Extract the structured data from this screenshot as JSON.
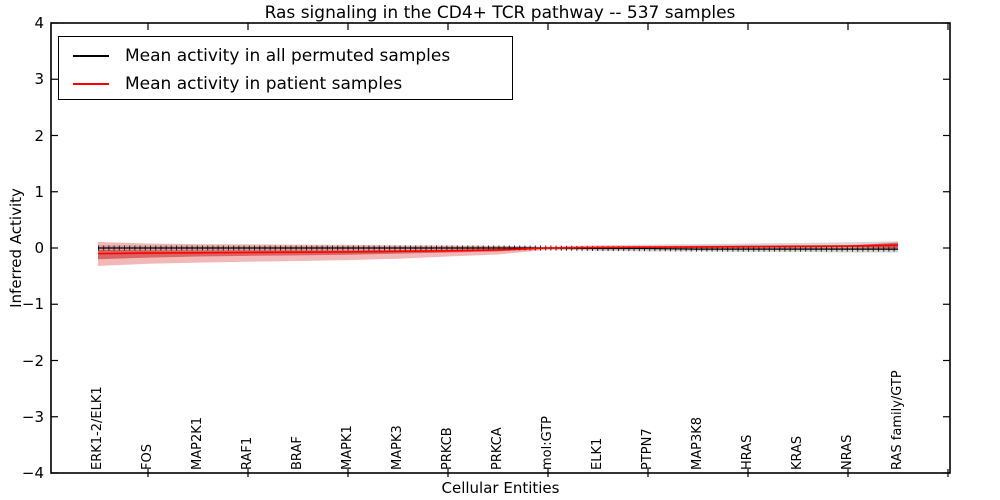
{
  "title": "Ras signaling in the CD4+ TCR pathway -- 537 samples",
  "legend": {
    "items": [
      {
        "label": "Mean activity in all permuted samples",
        "color": "#000000"
      },
      {
        "label": "Mean activity in patient samples",
        "color": "#ff0000"
      }
    ]
  },
  "axes": {
    "xlabel": "Cellular Entities",
    "ylabel": "Inferred Activity",
    "ylim": [
      -4,
      4
    ],
    "ytick_labels": [
      "4",
      "3",
      "2",
      "1",
      "0",
      "−1",
      "−2",
      "−3",
      "−4"
    ],
    "ytick_values": [
      4,
      3,
      2,
      1,
      0,
      -1,
      -2,
      -3,
      -4
    ]
  },
  "chart_data": {
    "type": "line",
    "title": "Ras signaling in the CD4+ TCR pathway -- 537 samples",
    "xlabel": "Cellular Entities",
    "ylabel": "Inferred Activity",
    "ylim": [
      -4,
      4
    ],
    "grid": false,
    "legend_position": "upper left",
    "categories": [
      "ERK1-2/ELK1",
      "FOS",
      "MAP2K1",
      "RAF1",
      "BRAF",
      "MAPK1",
      "MAPK3",
      "PRKCB",
      "PRKCA",
      "mol:GTP",
      "ELK1",
      "PTPN7",
      "MAP3K8",
      "HRAS",
      "KRAS",
      "NRAS",
      "RAS family/GTP"
    ],
    "series": [
      {
        "name": "Mean activity in all permuted samples",
        "color": "#000000",
        "values": [
          0.0,
          0.0,
          0.0,
          0.0,
          0.0,
          0.0,
          0.0,
          0.0,
          0.0,
          0.0,
          -0.01,
          -0.01,
          -0.02,
          -0.02,
          -0.02,
          -0.02,
          -0.02
        ]
      },
      {
        "name": "Mean activity in patient samples",
        "color": "#ff0000",
        "values": [
          -0.1,
          -0.09,
          -0.085,
          -0.08,
          -0.075,
          -0.07,
          -0.06,
          -0.05,
          -0.035,
          0.0,
          0.01,
          0.015,
          0.02,
          0.025,
          0.03,
          0.035,
          0.05
        ]
      }
    ],
    "bands": [
      {
        "name": "permuted-samples-spread",
        "fill": "#888888",
        "opacity": 0.35,
        "upper": [
          0.05,
          0.045,
          0.04,
          0.04,
          0.035,
          0.035,
          0.03,
          0.03,
          0.03,
          0.02,
          0.05,
          0.06,
          0.07,
          0.08,
          0.09,
          0.1,
          0.12
        ],
        "lower": [
          -0.05,
          -0.045,
          -0.04,
          -0.04,
          -0.035,
          -0.035,
          -0.03,
          -0.03,
          -0.03,
          -0.02,
          -0.05,
          -0.06,
          -0.06,
          -0.07,
          -0.07,
          -0.08,
          -0.08
        ]
      },
      {
        "name": "patient-samples-outer-spread",
        "fill": "#dd4444",
        "opacity": 0.38,
        "upper": [
          0.11,
          0.08,
          0.07,
          0.065,
          0.06,
          0.055,
          0.05,
          0.045,
          0.04,
          0.02,
          0.03,
          0.035,
          0.04,
          0.045,
          0.05,
          0.05,
          0.1
        ],
        "lower": [
          -0.32,
          -0.28,
          -0.26,
          -0.245,
          -0.23,
          -0.215,
          -0.19,
          -0.15,
          -0.115,
          -0.03,
          -0.02,
          -0.02,
          -0.02,
          -0.02,
          -0.02,
          -0.02,
          -0.04
        ]
      },
      {
        "name": "patient-samples-inner-spread",
        "fill": "#c41f1f",
        "opacity": 0.55,
        "upper": [
          -0.035,
          -0.04,
          -0.04,
          -0.04,
          -0.04,
          -0.04,
          -0.035,
          -0.03,
          -0.02,
          0.005,
          0.02,
          0.025,
          0.03,
          0.035,
          0.04,
          0.045,
          0.09
        ],
        "lower": [
          -0.2,
          -0.17,
          -0.15,
          -0.14,
          -0.13,
          -0.12,
          -0.1,
          -0.08,
          -0.06,
          -0.01,
          0.0,
          0.0,
          0.0,
          0.005,
          0.01,
          0.015,
          0.0
        ]
      }
    ]
  }
}
